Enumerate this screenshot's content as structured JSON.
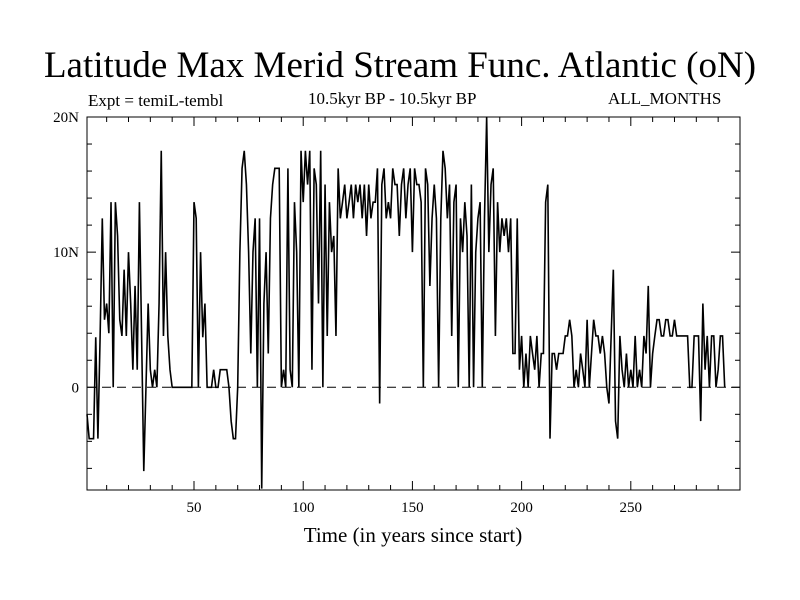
{
  "chart_data": {
    "type": "line",
    "title": "Latitude Max Merid Stream Func. Atlantic (oN)",
    "subtitle_left": "Expt = temiL-tembl",
    "subtitle_center": "10.5kyr BP - 10.5kyr BP",
    "subtitle_right": "ALL_MONTHS",
    "xlabel": "Time (in years since start)",
    "ylabel": "",
    "xlim": [
      1,
      300
    ],
    "ylim": [
      -7.6,
      20
    ],
    "x_ticks": [
      50,
      100,
      150,
      200,
      250
    ],
    "x_tick_labels": [
      "50",
      "100",
      "150",
      "200",
      "250"
    ],
    "y_ticks": [
      0,
      10,
      20
    ],
    "y_tick_labels": [
      "0",
      "10N",
      "20N"
    ],
    "reference_line": {
      "y": 0,
      "style": "dashed"
    },
    "grid": false,
    "series": [
      {
        "x_start": 1,
        "x_step": 1,
        "values": [
          -2,
          -3.8,
          -3.8,
          -3.8,
          3.7,
          -3.8,
          3.7,
          12.5,
          5,
          6.2,
          4,
          13.7,
          0,
          13.7,
          11.2,
          5,
          3.8,
          8.7,
          3.8,
          10,
          6.2,
          1.3,
          7.5,
          1.3,
          13.7,
          3.8,
          -6.2,
          0,
          6.2,
          1.3,
          0,
          1.3,
          0,
          6.2,
          17.5,
          3.8,
          10,
          3.8,
          1.3,
          0,
          0,
          0,
          0,
          0,
          0,
          0,
          0,
          0,
          0,
          13.7,
          12.5,
          0,
          10,
          3.7,
          6.2,
          0,
          0,
          0,
          1.3,
          0,
          0,
          1.3,
          1.3,
          1.3,
          1.3,
          0,
          -2.5,
          -3.8,
          -3.8,
          0,
          10,
          16.2,
          17.5,
          15,
          10,
          2.5,
          10,
          12.5,
          0,
          12.5,
          -7.5,
          6.2,
          10,
          2.5,
          12.5,
          15,
          16.2,
          16.2,
          16.2,
          0,
          1.3,
          0,
          16.2,
          1.3,
          0,
          13.7,
          10,
          0,
          17.5,
          13.7,
          17.5,
          15,
          17.5,
          1.3,
          16.2,
          15,
          6.2,
          17.5,
          0,
          15,
          3.8,
          13.7,
          10,
          11.2,
          3.8,
          16.2,
          12.5,
          13.7,
          15,
          12.5,
          13.7,
          15,
          12.5,
          15,
          13.7,
          15,
          12.5,
          15,
          11.2,
          15,
          12.5,
          13.7,
          13.7,
          16.2,
          -1.2,
          15,
          16.2,
          12.5,
          13.7,
          12.5,
          16.2,
          15,
          15,
          11.2,
          15,
          16.2,
          12.5,
          15,
          16.2,
          10,
          16.2,
          15,
          15,
          13.7,
          0,
          16.2,
          15,
          7.5,
          12.5,
          15,
          12.5,
          0,
          12.5,
          17.5,
          16.2,
          12.5,
          15,
          3.8,
          13.7,
          15,
          0,
          12.5,
          10,
          13.7,
          11.2,
          0,
          15,
          0,
          10,
          12.5,
          13.7,
          0,
          12.5,
          20,
          10,
          15,
          16.2,
          3.8,
          13.7,
          10,
          12.5,
          11.2,
          12.5,
          10,
          12.5,
          2.5,
          2.5,
          12.5,
          1.3,
          3.8,
          0,
          2.5,
          0,
          3.8,
          2.5,
          1.3,
          3.8,
          0,
          2.5,
          2.5,
          13.7,
          15,
          -3.8,
          2.5,
          2.5,
          1.3,
          2.5,
          2.5,
          2.5,
          3.8,
          3.8,
          5,
          3.8,
          0,
          1.3,
          0,
          2.5,
          1.3,
          0,
          5,
          0,
          2.5,
          5,
          3.8,
          3.8,
          2.5,
          3.8,
          2.5,
          0,
          -1.2,
          3.8,
          8.7,
          -2.5,
          -3.8,
          3.8,
          1.3,
          0,
          2.5,
          0,
          1.3,
          0,
          3.8,
          0,
          1.3,
          0,
          3.8,
          2.5,
          7.5,
          0,
          2.5,
          3.8,
          5,
          5,
          3.8,
          3.8,
          5,
          5,
          3.8,
          3.8,
          5,
          3.8,
          3.8,
          3.8,
          3.8,
          3.8,
          3.8,
          0,
          0,
          3.8,
          3.8,
          3.8,
          -2.5,
          6.2,
          1.3,
          3.8,
          0,
          3.8,
          3.8,
          0,
          1.3,
          3.8,
          3.8,
          0
        ]
      }
    ]
  }
}
